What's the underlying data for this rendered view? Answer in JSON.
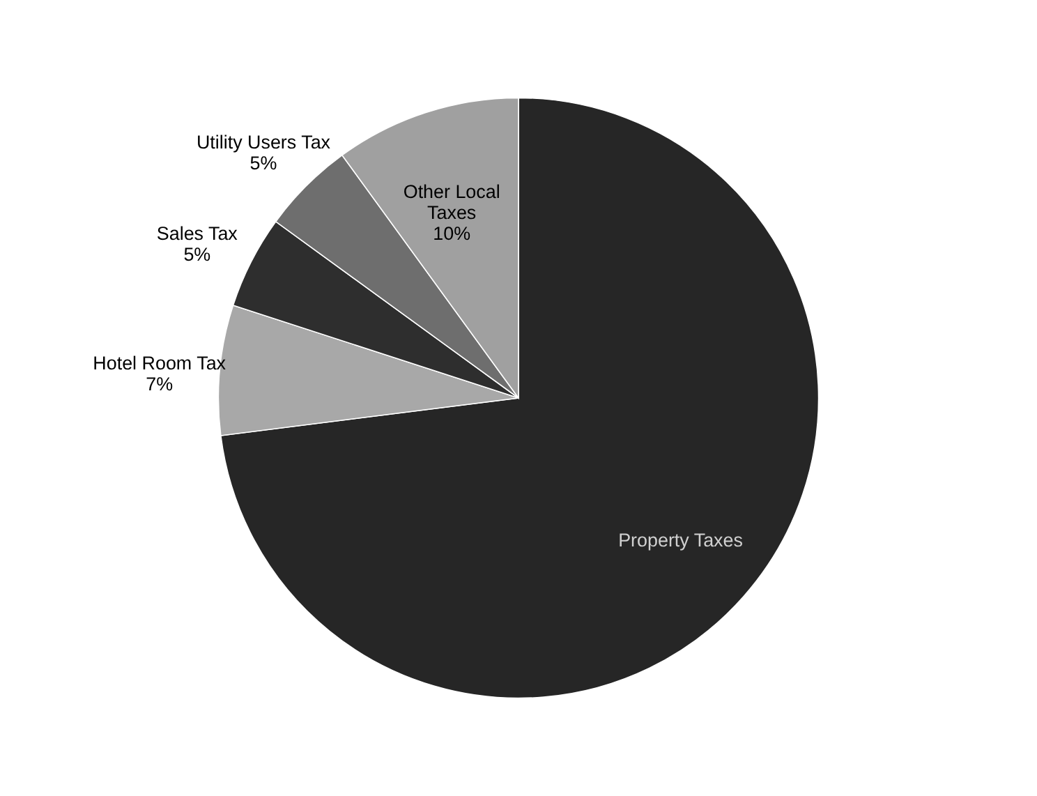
{
  "chart_data": {
    "type": "pie",
    "categories": [
      "Property Taxes",
      "Hotel Room Tax",
      "Sales Tax",
      "Utility Users Tax",
      "Other Local Taxes"
    ],
    "values": [
      73,
      7,
      5,
      5,
      10
    ],
    "value_labels": [
      null,
      "7%",
      "5%",
      "5%",
      "10%"
    ],
    "colors": [
      "#262626",
      "#a8a8a8",
      "#2e2e2e",
      "#6e6e6e",
      "#a0a0a0"
    ]
  }
}
